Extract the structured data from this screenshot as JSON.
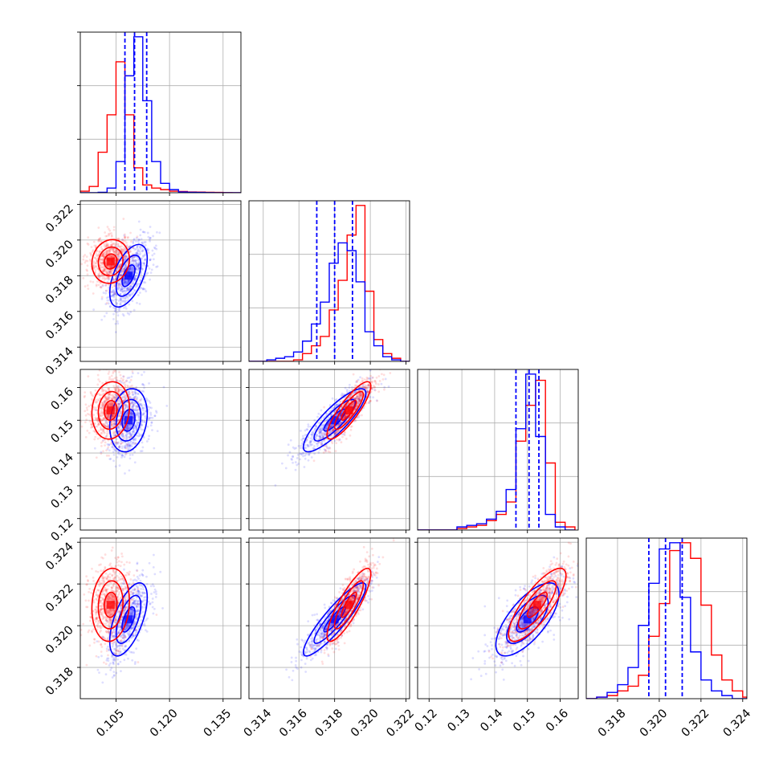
{
  "colors": {
    "series_a": "#ff0000",
    "series_b": "#0000ff",
    "grid": "#b0b0b0"
  },
  "chart_data": {
    "type": "corner",
    "title": "",
    "grid": true,
    "parameters": [
      {
        "range": [
          0.095,
          0.14
        ],
        "ticks": [
          "0.105",
          "0.120",
          "0.135"
        ],
        "tick_values": [
          0.105,
          0.12,
          0.135
        ]
      },
      {
        "range": [
          0.3132,
          0.3222
        ],
        "ticks": [
          "0.314",
          "0.316",
          "0.318",
          "0.320",
          "0.322"
        ],
        "tick_values": [
          0.314,
          0.316,
          0.318,
          0.32,
          0.322
        ]
      },
      {
        "range": [
          0.1165,
          0.1655
        ],
        "ticks": [
          "0.12",
          "0.13",
          "0.14",
          "0.15",
          "0.16"
        ],
        "tick_values": [
          0.12,
          0.13,
          0.14,
          0.15,
          0.16
        ]
      },
      {
        "range": [
          0.3165,
          0.3242
        ],
        "ticks": [
          "0.318",
          "0.320",
          "0.322",
          "0.324"
        ],
        "tick_values": [
          0.318,
          0.32,
          0.322,
          0.324
        ]
      }
    ],
    "series": [
      {
        "color": "#ff0000",
        "means": [
          0.1035,
          0.3188,
          0.153,
          0.321
        ],
        "sds": [
          0.003,
          0.0007,
          0.005,
          0.001
        ],
        "corr": [
          [
            1,
            0.1,
            0.1,
            0.1
          ],
          [
            0.1,
            1,
            0.85,
            0.85
          ],
          [
            0.1,
            0.85,
            1,
            0.8
          ],
          [
            0.1,
            0.85,
            0.8,
            1
          ]
        ]
      },
      {
        "color": "#0000ff",
        "means": [
          0.1085,
          0.318,
          0.15,
          0.3203
        ],
        "sds": [
          0.003,
          0.001,
          0.0055,
          0.001
        ],
        "corr": [
          [
            1,
            0.55,
            0.2,
            0.6
          ],
          [
            0.55,
            1,
            0.85,
            0.9
          ],
          [
            0.2,
            0.85,
            1,
            0.7
          ],
          [
            0.6,
            0.9,
            0.7,
            1
          ]
        ]
      }
    ],
    "histograms": [
      {
        "bin_edges": [
          0.095,
          0.0975,
          0.1,
          0.1025,
          0.105,
          0.1075,
          0.11,
          0.1125,
          0.115,
          0.1175,
          0.12,
          0.1225,
          0.125,
          0.1275,
          0.13,
          0.1325,
          0.135,
          0.1375,
          0.14
        ],
        "series_a": [
          0.01,
          0.04,
          0.26,
          0.5,
          0.84,
          0.5,
          0.16,
          0.05,
          0.03,
          0.02,
          0.01,
          0.008,
          0.005,
          0.004,
          0.003,
          0.002,
          0.001,
          0.0
        ],
        "series_b": [
          0.0,
          0.0,
          0.003,
          0.03,
          0.2,
          0.75,
          1.0,
          0.59,
          0.2,
          0.06,
          0.02,
          0.005,
          0.003,
          0.002,
          0.001,
          0.0,
          0.0,
          0.0
        ],
        "quantiles_b": [
          0.1075,
          0.1102,
          0.1136
        ]
      },
      {
        "bin_edges": [
          0.3132,
          0.3137,
          0.3142,
          0.3147,
          0.3152,
          0.3157,
          0.3162,
          0.3167,
          0.3172,
          0.3177,
          0.3182,
          0.3187,
          0.3192,
          0.3197,
          0.3202,
          0.3207,
          0.3212,
          0.3217,
          0.3222
        ],
        "series_a": [
          0.0,
          0.0,
          0.0,
          0.0,
          0.0,
          0.01,
          0.05,
          0.1,
          0.16,
          0.33,
          0.52,
          0.81,
          1.0,
          0.45,
          0.14,
          0.05,
          0.02,
          0.0
        ],
        "series_b": [
          0.0,
          0.0,
          0.01,
          0.02,
          0.03,
          0.06,
          0.13,
          0.24,
          0.38,
          0.63,
          0.76,
          0.71,
          0.51,
          0.19,
          0.1,
          0.03,
          0.01,
          0.0
        ],
        "quantiles_b": [
          0.317,
          0.318,
          0.319
        ]
      },
      {
        "bin_edges": [
          0.1165,
          0.1195,
          0.1225,
          0.1255,
          0.1285,
          0.1315,
          0.1345,
          0.1375,
          0.1405,
          0.1435,
          0.1465,
          0.1495,
          0.1525,
          0.1555,
          0.1585,
          0.1615,
          0.1645
        ],
        "series_a": [
          0.0,
          0.0,
          0.0,
          0.0,
          0.01,
          0.02,
          0.03,
          0.06,
          0.1,
          0.18,
          0.57,
          0.8,
          0.96,
          0.43,
          0.05,
          0.02
        ],
        "series_b": [
          0.0,
          0.0,
          0.0,
          0.0,
          0.02,
          0.03,
          0.04,
          0.07,
          0.12,
          0.26,
          0.65,
          1.0,
          0.6,
          0.1,
          0.02,
          0.0
        ],
        "quantiles_b": [
          0.1465,
          0.1505,
          0.1535
        ]
      },
      {
        "bin_edges": [
          0.3165,
          0.317,
          0.3175,
          0.318,
          0.3185,
          0.319,
          0.3195,
          0.32,
          0.3205,
          0.321,
          0.3215,
          0.322,
          0.3225,
          0.323,
          0.3235,
          0.324,
          0.3242
        ],
        "series_a": [
          0.0,
          0.01,
          0.02,
          0.05,
          0.08,
          0.15,
          0.4,
          0.61,
          0.95,
          1.0,
          0.9,
          0.6,
          0.28,
          0.12,
          0.05,
          0.01
        ],
        "series_b": [
          0.0,
          0.01,
          0.04,
          0.09,
          0.2,
          0.47,
          0.74,
          0.96,
          1.0,
          0.65,
          0.3,
          0.12,
          0.05,
          0.02,
          0.0,
          0.0
        ],
        "quantiles_b": [
          0.3195,
          0.3203,
          0.3211
        ]
      }
    ]
  }
}
